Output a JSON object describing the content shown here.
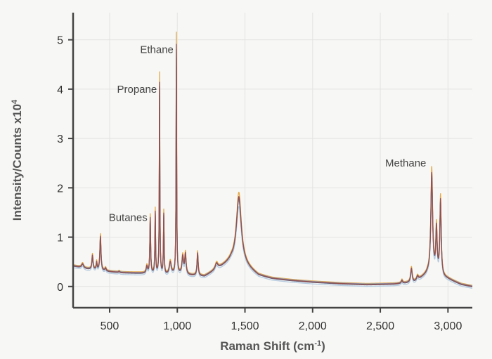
{
  "chart_data": {
    "type": "line",
    "title": "",
    "xlabel": "Raman Shift (cm",
    "xlabel_sup": "-1",
    "xlabel_end": ")",
    "ylabel": "Intensity/Counts x10",
    "ylabel_sup": "4",
    "xlim": [
      230,
      3180
    ],
    "ylim": [
      -0.43,
      5.55
    ],
    "grid": true,
    "legend": "none",
    "x_ticks": [
      {
        "value": 500,
        "label": "500"
      },
      {
        "value": 1000,
        "label": "1,000"
      },
      {
        "value": 1500,
        "label": "1,500"
      },
      {
        "value": 2000,
        "label": "2,000"
      },
      {
        "value": 2500,
        "label": "2,500"
      },
      {
        "value": 3000,
        "label": "3,000"
      }
    ],
    "y_ticks": [
      {
        "value": 0,
        "label": "0"
      },
      {
        "value": 1,
        "label": "1"
      },
      {
        "value": 2,
        "label": "2"
      },
      {
        "value": 3,
        "label": "3"
      },
      {
        "value": 4,
        "label": "4"
      },
      {
        "value": 5,
        "label": "5"
      }
    ],
    "annotations": [
      {
        "label": "Ethane",
        "x": 993,
        "y": 4.8
      },
      {
        "label": "Propane",
        "x": 870,
        "y": 4.0
      },
      {
        "label": "Butanes",
        "x": 800,
        "y": 1.4
      },
      {
        "label": "Methane",
        "x": 2860,
        "y": 2.5
      }
    ],
    "baseline": [
      [
        230,
        0.42
      ],
      [
        330,
        0.36
      ],
      [
        450,
        0.31
      ],
      [
        600,
        0.28
      ],
      [
        700,
        0.27
      ],
      [
        780,
        0.26
      ],
      [
        900,
        0.22
      ],
      [
        1000,
        0.24
      ],
      [
        1100,
        0.22
      ],
      [
        1200,
        0.2
      ],
      [
        1300,
        0.35
      ],
      [
        1400,
        0.5
      ],
      [
        1500,
        0.4
      ],
      [
        1600,
        0.22
      ],
      [
        1700,
        0.16
      ],
      [
        1850,
        0.12
      ],
      [
        2000,
        0.09
      ],
      [
        2200,
        0.06
      ],
      [
        2400,
        0.04
      ],
      [
        2600,
        0.05
      ],
      [
        2750,
        0.08
      ],
      [
        2850,
        0.25
      ],
      [
        3000,
        0.15
      ],
      [
        3100,
        0.04
      ],
      [
        3180,
        0.0
      ]
    ],
    "peaks": [
      {
        "x": 300,
        "h": 0.08,
        "w": 9
      },
      {
        "x": 373,
        "h": 0.28,
        "w": 5
      },
      {
        "x": 404,
        "h": 0.15,
        "w": 4
      },
      {
        "x": 432,
        "h": 0.68,
        "w": 5
      },
      {
        "x": 470,
        "h": 0.06,
        "w": 6
      },
      {
        "x": 570,
        "h": 0.02,
        "w": 5
      },
      {
        "x": 775,
        "h": 0.14,
        "w": 6
      },
      {
        "x": 800,
        "h": 1.1,
        "w": 3.5
      },
      {
        "x": 837,
        "h": 1.22,
        "w": 3
      },
      {
        "x": 869,
        "h": 3.8,
        "w": 2.5
      },
      {
        "x": 900,
        "h": 1.2,
        "w": 3
      },
      {
        "x": 948,
        "h": 0.25,
        "w": 9
      },
      {
        "x": 993,
        "h": 4.55,
        "w": 2.5
      },
      {
        "x": 1040,
        "h": 0.35,
        "w": 7
      },
      {
        "x": 1060,
        "h": 0.4,
        "w": 6
      },
      {
        "x": 1150,
        "h": 0.45,
        "w": 5
      },
      {
        "x": 1290,
        "h": 0.12,
        "w": 12
      },
      {
        "x": 1455,
        "h": 1.35,
        "w": 22
      },
      {
        "x": 2660,
        "h": 0.06,
        "w": 6
      },
      {
        "x": 2730,
        "h": 0.28,
        "w": 7
      },
      {
        "x": 2775,
        "h": 0.08,
        "w": 8
      },
      {
        "x": 2880,
        "h": 2.0,
        "w": 8
      },
      {
        "x": 2915,
        "h": 0.9,
        "w": 6
      },
      {
        "x": 2945,
        "h": 1.5,
        "w": 6
      }
    ],
    "series": [
      {
        "color": "#b5cbe0",
        "scale": 0.9,
        "offset": -0.04
      },
      {
        "color": "#e6a948",
        "scale": 1.07,
        "offset": 0.02
      },
      {
        "color": "#8fa0b8",
        "scale": 0.96,
        "offset": 0.01
      },
      {
        "color": "#5e6a8a",
        "scale": 1.0,
        "offset": -0.01
      },
      {
        "color": "#96504c",
        "scale": 1.02,
        "offset": 0.0
      }
    ]
  }
}
